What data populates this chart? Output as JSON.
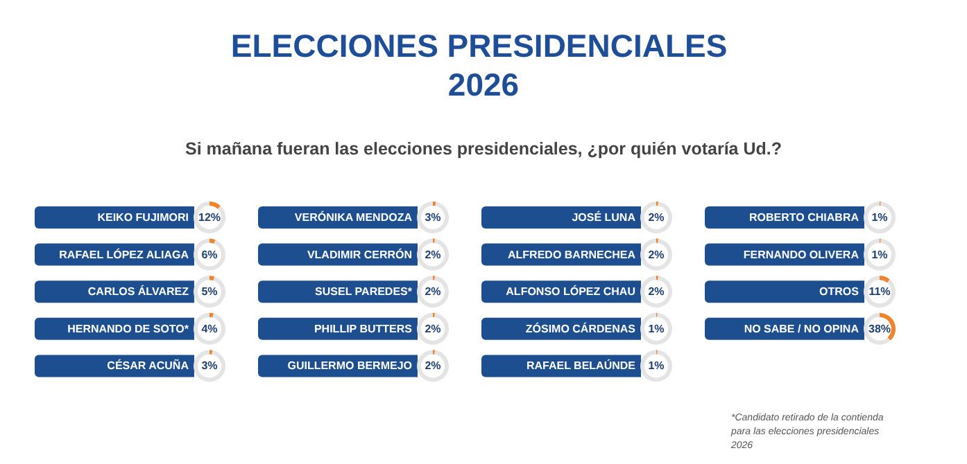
{
  "chart_data": {
    "type": "other",
    "title": "ELECCIONES PRESIDENCIALES 2026",
    "subtitle": "Si mañana fueran las elecciones presidenciales, ¿por quién votaría Ud.?",
    "categories": [
      "KEIKO FUJIMORI",
      "RAFAEL LÓPEZ ALIAGA",
      "CARLOS ÁLVAREZ",
      "HERNANDO DE SOTO*",
      "CÉSAR ACUÑA",
      "VERÓNIKA MENDOZA",
      "VLADIMIR CERRÓN",
      "SUSEL PAREDES*",
      "PHILLIP BUTTERS",
      "GUILLERMO BERMEJO",
      "JOSÉ LUNA",
      "ALFREDO BARNECHEA",
      "ALFONSO LÓPEZ CHAU",
      "ZÓSIMO CÁRDENAS",
      "RAFAEL BELAÚNDE",
      "ROBERTO CHIABRA",
      "FERNANDO OLIVERA",
      "OTROS",
      "NO SABE / NO OPINA"
    ],
    "values": [
      12,
      6,
      5,
      4,
      3,
      3,
      2,
      2,
      2,
      2,
      2,
      2,
      2,
      1,
      1,
      1,
      1,
      11,
      38
    ],
    "value_labels": [
      "12%",
      "6%",
      "5%",
      "4%",
      "3%",
      "3%",
      "2%",
      "2%",
      "2%",
      "2%",
      "2%",
      "2%",
      "2%",
      "1%",
      "1%",
      "1%",
      "1%",
      "11%",
      "38%"
    ],
    "color": "#f0842a",
    "annotations": [
      "*Candidato retirado de la contienda para las elecciones presidenciales 2026"
    ]
  }
}
